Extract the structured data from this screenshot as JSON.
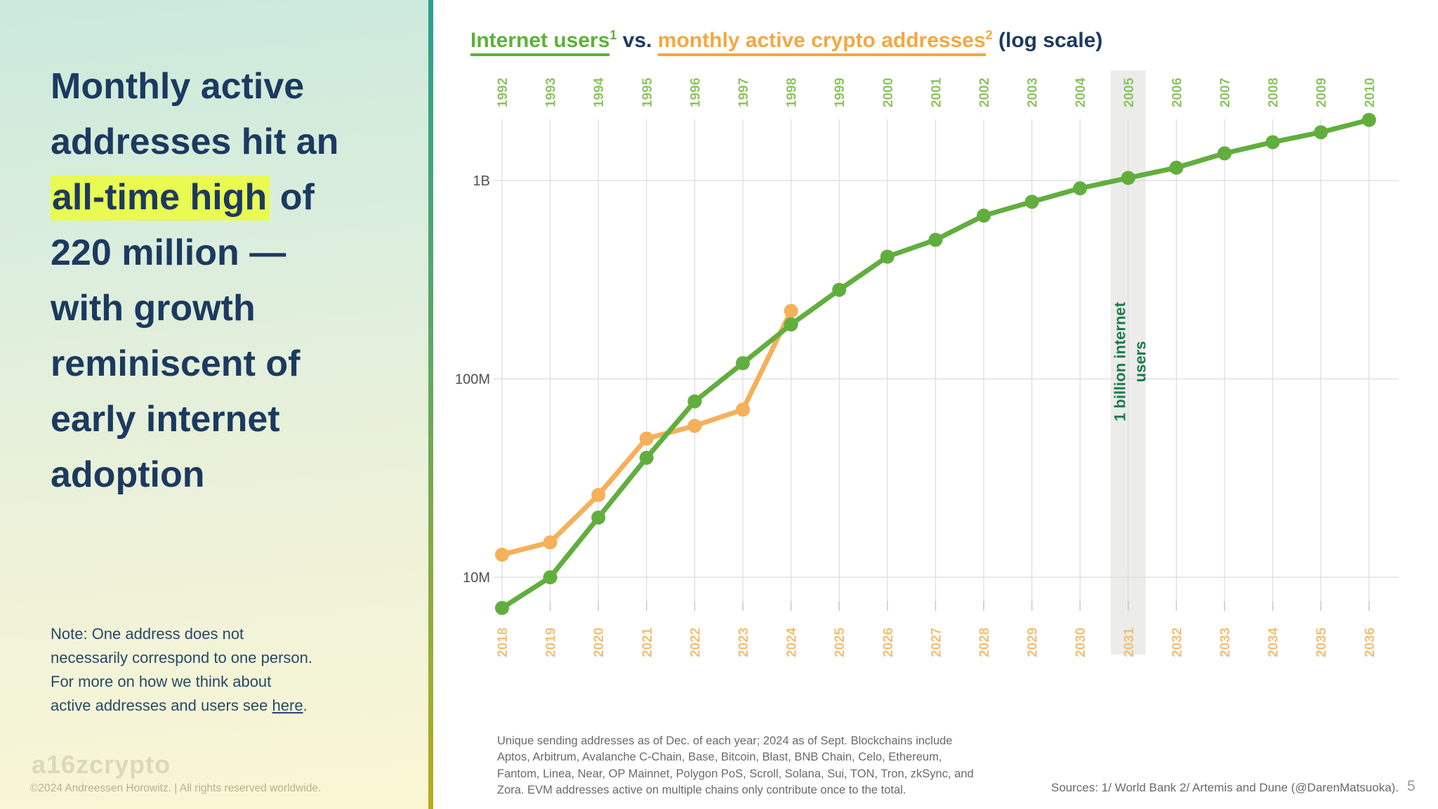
{
  "slide": {
    "headline": {
      "pre": "Monthly active\naddresses hit an\n",
      "highlight": "all-time high",
      "post": " of\n220 million —\nwith growth\nreminiscent of\nearly internet\nadoption"
    },
    "note": {
      "pre": "Note: One address does not\nnecessarily correspond to one person.\nFor more on how we think about\nactive addresses and users see ",
      "link": "here",
      "post": "."
    },
    "logo": "a16zcrypto",
    "copyright": "©2024 Andreessen Horowitz.  |  All rights reserved worldwide.",
    "page_number": "5"
  },
  "chart_title": {
    "series1": "Internet users",
    "series1_sup": "1",
    "mid": " vs. ",
    "series2": "monthly active crypto addresses",
    "series2_sup": "2",
    "tail": " (log scale)"
  },
  "footnote": "Unique sending addresses as of Dec. of each year; 2024 as of Sept. Blockchains include\nAptos, Arbitrum, Avalanche C-Chain, Base, Bitcoin, Blast, BNB Chain, Celo, Ethereum,\nFantom, Linea, Near, OP Mainnet, Polygon PoS, Scroll, Solana, Sui, TON, Tron, zkSync, and\nZora. EVM addresses active on multiple chains only contribute once to the total.",
  "sources": "Sources: 1/ World Bank 2/ Artemis and Dune (@DarenMatsuoka).",
  "colors": {
    "navy": "#1c3a60",
    "highlight": "#e9fa52",
    "green_line": "#61ae3e",
    "green_label": "#8cc466",
    "orange_line": "#f5b05a",
    "orange_label": "#f3bf78",
    "annotation_green": "#1e7a4b",
    "gridline": "#dcdcdc",
    "tick": "#c9c9c9",
    "band": "#ececea",
    "y_label": "#4f4f4f",
    "divider_top": "#2aa091",
    "divider_bottom": "#b5ad1e"
  },
  "chart_data": {
    "type": "line",
    "title": "Internet users vs. monthly active crypto addresses (log scale)",
    "y_scale": "log",
    "ylabel": "",
    "y_ticks": [
      {
        "label": "10M",
        "value_millions": 10
      },
      {
        "label": "100M",
        "value_millions": 100
      },
      {
        "label": "1B",
        "value_millions": 1000
      }
    ],
    "x_axis_top": {
      "color_role": "green_label",
      "years": [
        1992,
        1993,
        1994,
        1995,
        1996,
        1997,
        1998,
        1999,
        2000,
        2001,
        2002,
        2003,
        2004,
        2005,
        2006,
        2007,
        2008,
        2009,
        2010
      ]
    },
    "x_axis_bottom": {
      "color_role": "orange_label",
      "years": [
        2018,
        2019,
        2020,
        2021,
        2022,
        2023,
        2024,
        2025,
        2026,
        2027,
        2028,
        2029,
        2030,
        2031,
        2032,
        2033,
        2034,
        2035,
        2036
      ]
    },
    "series": [
      {
        "name": "Monthly active crypto addresses",
        "axis": "bottom",
        "color_role": "orange_line",
        "years": [
          2018,
          2019,
          2020,
          2021,
          2022,
          2023,
          2024
        ],
        "values_millions": [
          13,
          15,
          26,
          50,
          58,
          70,
          220
        ]
      },
      {
        "name": "Internet users",
        "axis": "top",
        "color_role": "green_line",
        "years": [
          1992,
          1993,
          1994,
          1995,
          1996,
          1997,
          1998,
          1999,
          2000,
          2001,
          2002,
          2003,
          2004,
          2005,
          2006,
          2007,
          2008,
          2009,
          2010
        ],
        "values_millions": [
          7,
          10,
          20,
          40,
          77,
          120,
          188,
          281,
          413,
          502,
          665,
          781,
          913,
          1030,
          1160,
          1370,
          1560,
          1750,
          2020
        ]
      }
    ],
    "annotation": {
      "lines": [
        "1 billion internet",
        "users"
      ],
      "at_year_top": 2005,
      "at_year_bottom": 2031
    },
    "band_year_index": 13,
    "legend_position": "in-title"
  }
}
